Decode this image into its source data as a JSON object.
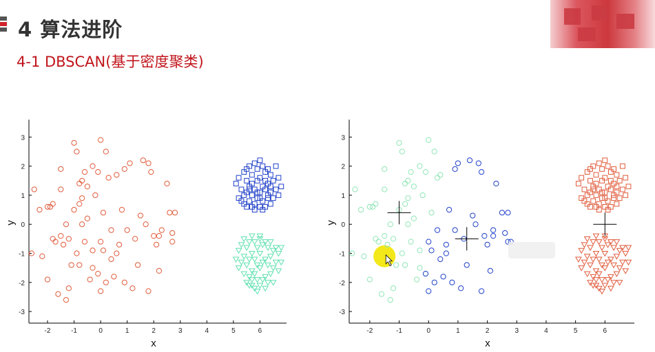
{
  "header": {
    "title": "4 算法进阶",
    "subtitle": "4-1 DBSCAN(基于密度聚类)"
  },
  "colors": {
    "accent": "#c0141b",
    "orange_red": "#e05a3a",
    "blue": "#1f3fc8",
    "aquamarine": "#5fe0b0",
    "pale_green": "#8fe6b5"
  },
  "cursor": {
    "highlight_color": "#f2e600"
  },
  "chart_data": [
    {
      "type": "scatter",
      "title": "",
      "xlabel": "x",
      "ylabel": "y",
      "xlim": [
        -2.7,
        7
      ],
      "ylim": [
        -3.4,
        3.6
      ],
      "xticks": [
        -2,
        -1,
        0,
        1,
        2,
        3,
        4,
        5,
        6
      ],
      "yticks": [
        -3,
        -2,
        -1,
        0,
        1,
        2,
        3
      ],
      "grid": false,
      "series": [
        {
          "marker": "circle",
          "color": "#e05a3a",
          "x": [
            -2.5,
            -2.3,
            -2.2,
            -2.0,
            -1.9,
            -1.8,
            -1.8,
            -1.6,
            -1.5,
            -1.5,
            -1.4,
            -1.3,
            -1.3,
            -1.2,
            -1.2,
            -1.1,
            -1.0,
            -1.0,
            -0.9,
            -0.9,
            -0.8,
            -0.8,
            -0.7,
            -0.7,
            -0.7,
            -0.6,
            -0.6,
            -0.5,
            -0.5,
            -0.4,
            -0.3,
            -0.3,
            -0.2,
            -0.1,
            -0.1,
            0.0,
            0.0,
            0.1,
            0.1,
            0.2,
            0.3,
            0.4,
            0.4,
            0.5,
            0.6,
            0.7,
            0.8,
            0.9,
            0.9,
            1.0,
            1.1,
            1.2,
            1.3,
            1.4,
            1.6,
            1.7,
            1.8,
            1.9,
            2.0,
            2.1,
            2.2,
            2.3,
            2.5,
            2.6,
            2.7,
            2.8,
            -2.6,
            -1.7,
            -0.3,
            0.6,
            1.5,
            2.2,
            -2.0,
            -0.8,
            0.2,
            1.8,
            0.0,
            -1.5,
            2.7
          ],
          "y": [
            1.2,
            0.5,
            -1.1,
            -1.9,
            0.6,
            0.7,
            -0.5,
            -2.4,
            1.9,
            -0.4,
            -0.7,
            0.0,
            -2.6,
            -0.5,
            -2.2,
            -1.4,
            0.5,
            2.8,
            2.5,
            -1.0,
            1.4,
            -1.4,
            1.5,
            0.9,
            0.0,
            1.8,
            -0.6,
            1.3,
            0.2,
            -1.9,
            2.0,
            -1.5,
            1.0,
            -1.7,
            1.8,
            2.9,
            -2.3,
            0.4,
            -0.9,
            2.5,
            1.6,
            -1.2,
            -0.2,
            -1.8,
            1.7,
            -0.7,
            0.5,
            -2.0,
            1.9,
            -0.2,
            2.1,
            -2.2,
            -0.5,
            -1.4,
            2.2,
            0.0,
            2.1,
            1.8,
            -0.4,
            -0.7,
            -1.6,
            -0.2,
            1.4,
            0.4,
            -0.3,
            0.4,
            -1.0,
            -0.6,
            -0.9,
            -1.0,
            0.3,
            -0.4,
            0.6,
            0.7,
            -2.0,
            -2.3,
            -0.6,
            1.2,
            -0.6
          ]
        },
        {
          "marker": "square",
          "color": "#1f3fc8",
          "x": [
            5.1,
            5.2,
            5.2,
            5.3,
            5.3,
            5.4,
            5.4,
            5.4,
            5.5,
            5.5,
            5.5,
            5.6,
            5.6,
            5.6,
            5.7,
            5.7,
            5.7,
            5.7,
            5.8,
            5.8,
            5.8,
            5.9,
            5.9,
            5.9,
            6.0,
            6.0,
            6.0,
            6.0,
            6.1,
            6.1,
            6.1,
            6.2,
            6.2,
            6.2,
            6.3,
            6.3,
            6.3,
            6.4,
            6.4,
            6.4,
            6.5,
            6.5,
            6.6,
            6.6,
            6.7,
            6.7,
            6.8,
            5.5,
            5.8,
            6.1,
            6.4,
            5.6,
            6.0,
            6.3,
            5.9,
            6.2
          ],
          "y": [
            1.4,
            0.9,
            1.6,
            1.2,
            0.8,
            1.8,
            1.0,
            0.7,
            1.5,
            1.1,
            0.6,
            2.0,
            1.3,
            0.8,
            1.7,
            1.4,
            1.0,
            0.6,
            2.1,
            1.2,
            0.7,
            1.9,
            1.5,
            0.9,
            2.2,
            1.6,
            1.1,
            0.6,
            2.0,
            1.3,
            0.8,
            1.8,
            1.2,
            0.6,
            1.9,
            1.4,
            0.9,
            1.7,
            1.1,
            0.7,
            1.5,
            0.9,
            2.0,
            1.2,
            1.6,
            1.0,
            1.3,
            1.9,
            0.5,
            0.5,
            1.3,
            1.2,
            0.9,
            1.0,
            1.1,
            1.5
          ]
        },
        {
          "marker": "triangle-down",
          "color": "#5fe0b0",
          "x": [
            5.1,
            5.2,
            5.2,
            5.3,
            5.3,
            5.4,
            5.4,
            5.4,
            5.5,
            5.5,
            5.5,
            5.6,
            5.6,
            5.6,
            5.7,
            5.7,
            5.7,
            5.7,
            5.8,
            5.8,
            5.8,
            5.8,
            5.9,
            5.9,
            5.9,
            6.0,
            6.0,
            6.0,
            6.0,
            6.1,
            6.1,
            6.1,
            6.2,
            6.2,
            6.2,
            6.3,
            6.3,
            6.3,
            6.4,
            6.4,
            6.4,
            6.5,
            6.5,
            6.5,
            6.6,
            6.6,
            6.7,
            6.7,
            6.8,
            6.8,
            5.6,
            5.9,
            6.2,
            6.0,
            5.7
          ],
          "y": [
            -1.2,
            -0.9,
            -1.5,
            -0.7,
            -1.3,
            -0.5,
            -1.1,
            -1.7,
            -0.8,
            -1.4,
            -2.0,
            -0.6,
            -1.2,
            -1.8,
            -0.4,
            -1.0,
            -1.6,
            -2.1,
            -0.6,
            -1.2,
            -1.7,
            -2.2,
            -0.8,
            -1.4,
            -1.9,
            -0.5,
            -1.0,
            -1.5,
            -2.1,
            -0.7,
            -1.3,
            -1.9,
            -0.6,
            -1.2,
            -1.8,
            -0.8,
            -1.4,
            -2.0,
            -0.6,
            -1.1,
            -1.7,
            -0.9,
            -1.5,
            -2.0,
            -0.8,
            -1.3,
            -1.0,
            -1.6,
            -0.8,
            -1.3,
            -2.1,
            -2.3,
            -2.2,
            -0.4,
            -1.9
          ]
        }
      ]
    },
    {
      "type": "scatter",
      "title": "",
      "xlabel": "x",
      "ylabel": "y",
      "xlim": [
        -2.7,
        7
      ],
      "ylim": [
        -3.4,
        3.6
      ],
      "xticks": [
        -2,
        -1,
        0,
        1,
        2,
        3,
        4,
        5,
        6
      ],
      "yticks": [
        -3,
        -2,
        -1,
        0,
        1,
        2,
        3
      ],
      "grid": false,
      "series": [
        {
          "marker": "circle",
          "color": "#8fe6b5",
          "x": [
            -2.5,
            -2.3,
            -2.2,
            -2.0,
            -1.9,
            -1.8,
            -1.8,
            -1.6,
            -1.5,
            -1.5,
            -1.4,
            -1.3,
            -1.3,
            -1.2,
            -1.2,
            -1.1,
            -1.0,
            -1.0,
            -0.9,
            -0.9,
            -0.8,
            -0.8,
            -0.7,
            -0.7,
            -0.7,
            -0.6,
            -0.6,
            -0.5,
            -0.5,
            -0.4,
            -0.3,
            -0.3,
            -0.2,
            -0.1,
            -0.1,
            0.0,
            0.1,
            0.2,
            0.3,
            0.4,
            -2.6,
            -1.7,
            -0.3,
            -2.0,
            -0.8,
            -1.5
          ],
          "y": [
            1.2,
            0.5,
            -1.1,
            -1.9,
            0.6,
            0.7,
            -0.5,
            -2.4,
            1.9,
            -0.4,
            -0.7,
            0.0,
            -2.6,
            -0.5,
            -2.2,
            -1.4,
            0.5,
            2.8,
            2.5,
            -1.0,
            1.4,
            -1.4,
            1.5,
            0.9,
            0.0,
            1.8,
            -0.6,
            1.3,
            0.2,
            -1.9,
            2.0,
            -1.5,
            1.0,
            -1.7,
            1.8,
            2.9,
            0.4,
            2.5,
            1.6,
            1.7,
            -1.0,
            -0.6,
            -0.9,
            0.6,
            0.7,
            1.2
          ]
        },
        {
          "marker": "circle",
          "color": "#1f3fc8",
          "x": [
            -0.1,
            0.0,
            0.1,
            0.3,
            0.4,
            0.5,
            0.6,
            0.7,
            0.8,
            0.9,
            0.9,
            1.0,
            1.1,
            1.2,
            1.3,
            1.4,
            1.6,
            1.7,
            1.8,
            1.9,
            2.0,
            2.1,
            2.2,
            2.3,
            2.5,
            2.6,
            2.7,
            2.8,
            0.6,
            1.5,
            2.2,
            0.2,
            1.8,
            0.0,
            2.7
          ],
          "y": [
            -1.7,
            -2.3,
            -0.9,
            -0.2,
            -1.2,
            -1.8,
            -0.7,
            0.5,
            -2.0,
            1.9,
            -0.2,
            2.1,
            -2.2,
            -0.5,
            -1.4,
            2.2,
            0.0,
            2.1,
            1.8,
            -0.4,
            -0.7,
            -1.6,
            -0.2,
            1.4,
            0.4,
            -0.3,
            0.4,
            -0.6,
            -1.0,
            0.3,
            -0.4,
            -2.0,
            -2.3,
            -0.6,
            -0.6
          ]
        },
        {
          "marker": "square",
          "color": "#e05a3a",
          "x": [
            5.1,
            5.2,
            5.2,
            5.3,
            5.3,
            5.4,
            5.4,
            5.4,
            5.5,
            5.5,
            5.5,
            5.6,
            5.6,
            5.6,
            5.7,
            5.7,
            5.7,
            5.7,
            5.8,
            5.8,
            5.8,
            5.9,
            5.9,
            5.9,
            6.0,
            6.0,
            6.0,
            6.0,
            6.1,
            6.1,
            6.1,
            6.2,
            6.2,
            6.2,
            6.3,
            6.3,
            6.3,
            6.4,
            6.4,
            6.4,
            6.5,
            6.5,
            6.6,
            6.6,
            6.7,
            6.7,
            6.8,
            5.5,
            5.8,
            6.1,
            6.4,
            5.6,
            6.0,
            6.3,
            5.9,
            6.2
          ],
          "y": [
            1.4,
            0.9,
            1.6,
            1.2,
            0.8,
            1.8,
            1.0,
            0.7,
            1.5,
            1.1,
            0.6,
            2.0,
            1.3,
            0.8,
            1.7,
            1.4,
            1.0,
            0.6,
            2.1,
            1.2,
            0.7,
            1.9,
            1.5,
            0.9,
            2.2,
            1.6,
            1.1,
            0.6,
            2.0,
            1.3,
            0.8,
            1.8,
            1.2,
            0.6,
            1.9,
            1.4,
            0.9,
            1.7,
            1.1,
            0.7,
            1.5,
            0.9,
            2.0,
            1.2,
            1.6,
            1.0,
            1.3,
            1.9,
            0.5,
            0.5,
            1.3,
            1.2,
            0.9,
            1.0,
            1.1,
            1.5
          ]
        },
        {
          "marker": "triangle-down",
          "color": "#e05a3a",
          "x": [
            5.1,
            5.2,
            5.2,
            5.3,
            5.3,
            5.4,
            5.4,
            5.4,
            5.5,
            5.5,
            5.5,
            5.6,
            5.6,
            5.6,
            5.7,
            5.7,
            5.7,
            5.7,
            5.8,
            5.8,
            5.8,
            5.8,
            5.9,
            5.9,
            5.9,
            6.0,
            6.0,
            6.0,
            6.0,
            6.1,
            6.1,
            6.1,
            6.2,
            6.2,
            6.2,
            6.3,
            6.3,
            6.3,
            6.4,
            6.4,
            6.4,
            6.5,
            6.5,
            6.5,
            6.6,
            6.6,
            6.7,
            6.7,
            6.8,
            6.8,
            5.6,
            5.9,
            6.2,
            6.0,
            5.7
          ],
          "y": [
            -1.2,
            -0.9,
            -1.5,
            -0.7,
            -1.3,
            -0.5,
            -1.1,
            -1.7,
            -0.8,
            -1.4,
            -2.0,
            -0.6,
            -1.2,
            -1.8,
            -0.4,
            -1.0,
            -1.6,
            -2.1,
            -0.6,
            -1.2,
            -1.7,
            -2.2,
            -0.8,
            -1.4,
            -1.9,
            -0.5,
            -1.0,
            -1.5,
            -2.1,
            -0.7,
            -1.3,
            -1.9,
            -0.6,
            -1.2,
            -1.8,
            -0.8,
            -1.4,
            -2.0,
            -0.6,
            -1.1,
            -1.7,
            -0.9,
            -1.5,
            -2.0,
            -0.8,
            -1.3,
            -1.0,
            -1.6,
            -0.8,
            -1.3,
            -2.1,
            -2.3,
            -2.2,
            -0.4,
            -1.9
          ]
        }
      ],
      "centroids": {
        "marker": "plus",
        "color": "#000000",
        "x": [
          -1.0,
          1.3,
          6.0
        ],
        "y": [
          0.4,
          -0.5,
          0.0
        ]
      },
      "cursor_point": {
        "x": -1.5,
        "y": -1.1
      }
    }
  ]
}
